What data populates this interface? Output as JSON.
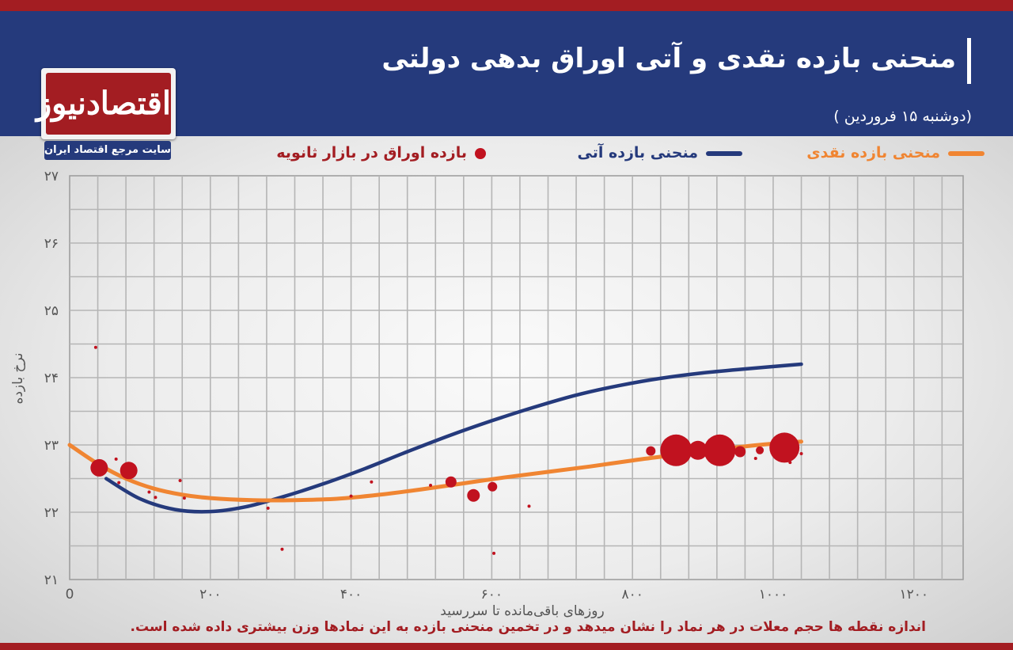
{
  "header": {
    "title": "منحنی بازده نقدی و آتی اوراق بدهی دولتی",
    "subtitle": "(دوشنبه ۱۵ فروردین )"
  },
  "logo": {
    "name": "اقتصادنیوز",
    "tagline": "سایت مرجع اقتصاد ایران"
  },
  "colors": {
    "spot": "#f08532",
    "forward": "#253a7c",
    "bonds": "#c1121f",
    "brand_red": "#a31d22",
    "brand_blue": "#253a7c"
  },
  "footnote": "اندازه نقطه ها حجم معلات در هر نماد را نشان میدهد و در تخمین منحنی بازده به این نمادها وزن بیشتری داده شده است.",
  "chart_data": {
    "type": "scatter",
    "xlabel": "روزهای باقی‌مانده تا سررسید",
    "ylabel": "نرخ بازده",
    "xlim": [
      0,
      1270
    ],
    "ylim": [
      21,
      27
    ],
    "x_ticks": [
      0,
      200,
      400,
      600,
      800,
      1000,
      1200
    ],
    "x_tick_labels": [
      "0",
      "۲۰۰",
      "۴۰۰",
      "۶۰۰",
      "۸۰۰",
      "۱۰۰۰",
      "۱۲۰۰"
    ],
    "y_ticks": [
      21,
      22,
      23,
      24,
      25,
      26,
      27
    ],
    "y_tick_labels": [
      "۲۱",
      "۲۲",
      "۲۳",
      "۲۴",
      "۲۵",
      "۲۶",
      "۲۷"
    ],
    "grid": true,
    "legend_position": "top",
    "series": [
      {
        "name": "منحنی بازده نقدی",
        "kind": "line",
        "color": "#f08532",
        "x": [
          0,
          40,
          80,
          120,
          160,
          200,
          260,
          320,
          380,
          440,
          500,
          560,
          620,
          680,
          740,
          800,
          860,
          920,
          980,
          1040
        ],
        "y": [
          23.0,
          22.72,
          22.5,
          22.35,
          22.26,
          22.21,
          22.18,
          22.18,
          22.2,
          22.26,
          22.34,
          22.43,
          22.52,
          22.6,
          22.68,
          22.77,
          22.85,
          22.93,
          23.0,
          23.05
        ]
      },
      {
        "name": "منحنی بازده آتی",
        "kind": "line",
        "color": "#253a7c",
        "x": [
          52,
          100,
          150,
          200,
          250,
          300,
          360,
          420,
          480,
          540,
          600,
          660,
          720,
          780,
          840,
          900,
          960,
          1040
        ],
        "y": [
          22.5,
          22.2,
          22.04,
          22.01,
          22.08,
          22.22,
          22.42,
          22.65,
          22.9,
          23.14,
          23.36,
          23.56,
          23.74,
          23.88,
          23.99,
          24.07,
          24.13,
          24.2
        ]
      },
      {
        "name": "بازده اوراق در بازار ثانویه",
        "kind": "bubble",
        "color": "#c1121f",
        "points": [
          {
            "x": 37,
            "y": 24.45,
            "size": 2
          },
          {
            "x": 42,
            "y": 22.66,
            "size": 11
          },
          {
            "x": 66,
            "y": 22.79,
            "size": 2
          },
          {
            "x": 70,
            "y": 22.44,
            "size": 2
          },
          {
            "x": 84,
            "y": 22.62,
            "size": 11
          },
          {
            "x": 113,
            "y": 22.3,
            "size": 2
          },
          {
            "x": 122,
            "y": 22.22,
            "size": 2
          },
          {
            "x": 157,
            "y": 22.47,
            "size": 2
          },
          {
            "x": 163,
            "y": 22.21,
            "size": 2
          },
          {
            "x": 282,
            "y": 22.06,
            "size": 2
          },
          {
            "x": 302,
            "y": 21.45,
            "size": 2
          },
          {
            "x": 400,
            "y": 22.24,
            "size": 2
          },
          {
            "x": 429,
            "y": 22.45,
            "size": 2
          },
          {
            "x": 513,
            "y": 22.4,
            "size": 2
          },
          {
            "x": 542,
            "y": 22.45,
            "size": 7
          },
          {
            "x": 574,
            "y": 22.25,
            "size": 8
          },
          {
            "x": 601,
            "y": 22.38,
            "size": 6
          },
          {
            "x": 603,
            "y": 21.39,
            "size": 2
          },
          {
            "x": 653,
            "y": 22.09,
            "size": 2
          },
          {
            "x": 826,
            "y": 22.91,
            "size": 6
          },
          {
            "x": 862,
            "y": 22.92,
            "size": 20
          },
          {
            "x": 893,
            "y": 22.92,
            "size": 12
          },
          {
            "x": 924,
            "y": 22.92,
            "size": 20
          },
          {
            "x": 953,
            "y": 22.9,
            "size": 7
          },
          {
            "x": 975,
            "y": 22.8,
            "size": 2
          },
          {
            "x": 981,
            "y": 22.92,
            "size": 5
          },
          {
            "x": 1016,
            "y": 22.96,
            "size": 19
          },
          {
            "x": 1024,
            "y": 22.74,
            "size": 2
          },
          {
            "x": 1040,
            "y": 22.87,
            "size": 2
          }
        ]
      }
    ]
  }
}
